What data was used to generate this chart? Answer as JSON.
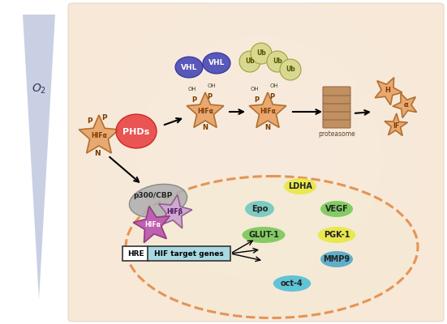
{
  "bg_color": "#ffffff",
  "panel_bg": "#f7e8d8",
  "o2_tri_color": "#c0c8e0",
  "star_color": "#e8a870",
  "star_edge": "#b07030",
  "vhl_color": "#5858b8",
  "ub_color": "#d8d890",
  "ub_edge": "#a0a040",
  "phd_color": "#e84848",
  "ellipse_color": "#e07828",
  "hifa_purple": "#c060b0",
  "hifb_color": "#c060b0",
  "p300_color": "#b0b0b0",
  "proteasome_color": "#c09060",
  "gene_data": [
    [
      "LDHA",
      "#e8e840",
      370,
      230
    ],
    [
      "Epo",
      "#70c8c0",
      320,
      258
    ],
    [
      "VEGF",
      "#78c858",
      415,
      258
    ],
    [
      "GLUT-1",
      "#78c858",
      325,
      290
    ],
    [
      "PGK-1",
      "#e8e840",
      415,
      290
    ],
    [
      "MMP9",
      "#50a8c8",
      415,
      320
    ],
    [
      "oct-4",
      "#50c0d8",
      360,
      350
    ]
  ]
}
